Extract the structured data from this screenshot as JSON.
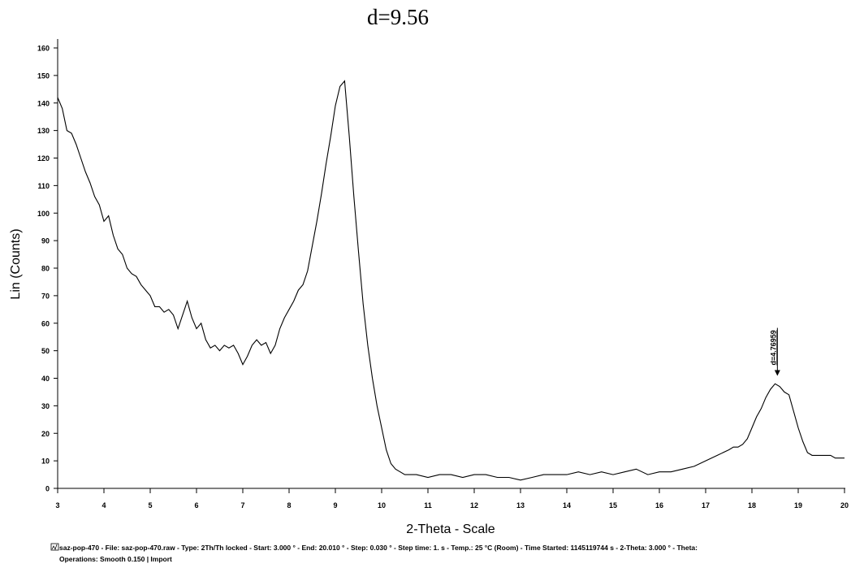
{
  "chart_data": {
    "type": "line",
    "title": "d=9.56",
    "x_label": "2-Theta - Scale",
    "y_label": "Lin (Counts)",
    "x": [
      3.0,
      3.1,
      3.2,
      3.3,
      3.4,
      3.5,
      3.6,
      3.7,
      3.8,
      3.9,
      4.0,
      4.1,
      4.2,
      4.3,
      4.4,
      4.5,
      4.6,
      4.7,
      4.8,
      4.9,
      5.0,
      5.1,
      5.2,
      5.3,
      5.4,
      5.5,
      5.6,
      5.7,
      5.8,
      5.9,
      6.0,
      6.1,
      6.2,
      6.3,
      6.4,
      6.5,
      6.6,
      6.7,
      6.8,
      6.9,
      7.0,
      7.1,
      7.2,
      7.3,
      7.4,
      7.5,
      7.6,
      7.7,
      7.8,
      7.9,
      8.0,
      8.1,
      8.2,
      8.3,
      8.4,
      8.5,
      8.6,
      8.7,
      8.8,
      8.9,
      9.0,
      9.1,
      9.2,
      9.3,
      9.4,
      9.5,
      9.6,
      9.7,
      9.8,
      9.9,
      10.0,
      10.1,
      10.2,
      10.3,
      10.4,
      10.5,
      10.75,
      11,
      11.25,
      11.5,
      11.75,
      12,
      12.25,
      12.5,
      12.75,
      13,
      13.25,
      13.5,
      13.75,
      14,
      14.25,
      14.5,
      14.75,
      15,
      15.25,
      15.5,
      15.75,
      16,
      16.25,
      16.5,
      16.75,
      17,
      17.25,
      17.5,
      17.6,
      17.7,
      17.8,
      17.9,
      18.0,
      18.1,
      18.2,
      18.3,
      18.4,
      18.5,
      18.6,
      18.7,
      18.8,
      18.9,
      19.0,
      19.1,
      19.2,
      19.3,
      19.4,
      19.5,
      19.6,
      19.7,
      19.8,
      19.9,
      20.0
    ],
    "series": [
      {
        "color": "#000000",
        "values": [
          142,
          138,
          130,
          129,
          125,
          120,
          115,
          111,
          106,
          103,
          97,
          99,
          92,
          87,
          85,
          80,
          78,
          77,
          74,
          72,
          70,
          66,
          66,
          64,
          65,
          63,
          58,
          63,
          68,
          62,
          58,
          60,
          54,
          51,
          52,
          50,
          52,
          51,
          52,
          49,
          45,
          48,
          52,
          54,
          52,
          53,
          49,
          52,
          58,
          62,
          65,
          68,
          72,
          74,
          79,
          88,
          97,
          107,
          118,
          128,
          139,
          146,
          148,
          128,
          106,
          86,
          67,
          52,
          40,
          30,
          22,
          14,
          9,
          7,
          6,
          5,
          5,
          4,
          5,
          5,
          4,
          5,
          5,
          4,
          4,
          3,
          4,
          5,
          5,
          5,
          6,
          5,
          6,
          5,
          6,
          7,
          5,
          6,
          6,
          7,
          8,
          10,
          12,
          14,
          15,
          15,
          16,
          18,
          22,
          26,
          29,
          33,
          36,
          38,
          37,
          35,
          34,
          28,
          22,
          17,
          13,
          12,
          12,
          12,
          12,
          12,
          11,
          11,
          11
        ]
      }
    ],
    "xlim": [
      3,
      20
    ],
    "xticks": [
      3,
      4,
      5,
      6,
      7,
      8,
      9,
      10,
      11,
      12,
      13,
      14,
      15,
      16,
      17,
      18,
      19,
      20
    ],
    "ylim": [
      0,
      160
    ],
    "yticks": [
      0,
      10,
      20,
      30,
      40,
      50,
      60,
      70,
      80,
      90,
      100,
      110,
      120,
      130,
      140,
      150,
      160
    ],
    "annotations": [
      {
        "text": "d=4.76959",
        "x": 18.55,
        "y": 40
      }
    ],
    "footer": [
      "saz-pop-470 - File: saz-pop-470.raw - Type: 2Th/Th locked - Start: 3.000 ° - End: 20.010 ° - Step: 0.030 ° - Step time: 1. s - Temp.: 25 °C (Room) - Time Started: 1145119744 s - 2-Theta: 3.000 ° - Theta:",
      "Operations: Smooth 0.150 | Import"
    ]
  }
}
